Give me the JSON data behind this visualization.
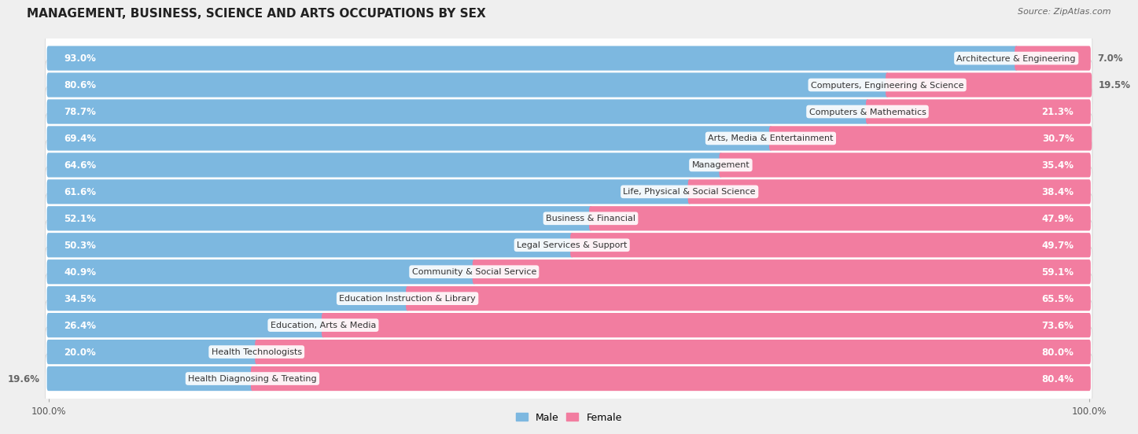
{
  "title": "MANAGEMENT, BUSINESS, SCIENCE AND ARTS OCCUPATIONS BY SEX",
  "source": "Source: ZipAtlas.com",
  "categories": [
    "Architecture & Engineering",
    "Computers, Engineering & Science",
    "Computers & Mathematics",
    "Arts, Media & Entertainment",
    "Management",
    "Life, Physical & Social Science",
    "Business & Financial",
    "Legal Services & Support",
    "Community & Social Service",
    "Education Instruction & Library",
    "Education, Arts & Media",
    "Health Technologists",
    "Health Diagnosing & Treating"
  ],
  "male_values": [
    93.0,
    80.6,
    78.7,
    69.4,
    64.6,
    61.6,
    52.1,
    50.3,
    40.9,
    34.5,
    26.4,
    20.0,
    19.6
  ],
  "female_values": [
    7.0,
    19.5,
    21.3,
    30.7,
    35.4,
    38.4,
    47.9,
    49.7,
    59.1,
    65.5,
    73.6,
    80.0,
    80.4
  ],
  "male_color": "#7db8e0",
  "female_color": "#f27da0",
  "background_color": "#efefef",
  "row_bg_color": "#e8e8e8",
  "bar_bg_color": "#ffffff",
  "label_color_inside": "#ffffff",
  "label_color_outside": "#666666",
  "title_fontsize": 11,
  "label_fontsize": 8.5,
  "category_fontsize": 8,
  "legend_fontsize": 9,
  "axis_fontsize": 8.5
}
